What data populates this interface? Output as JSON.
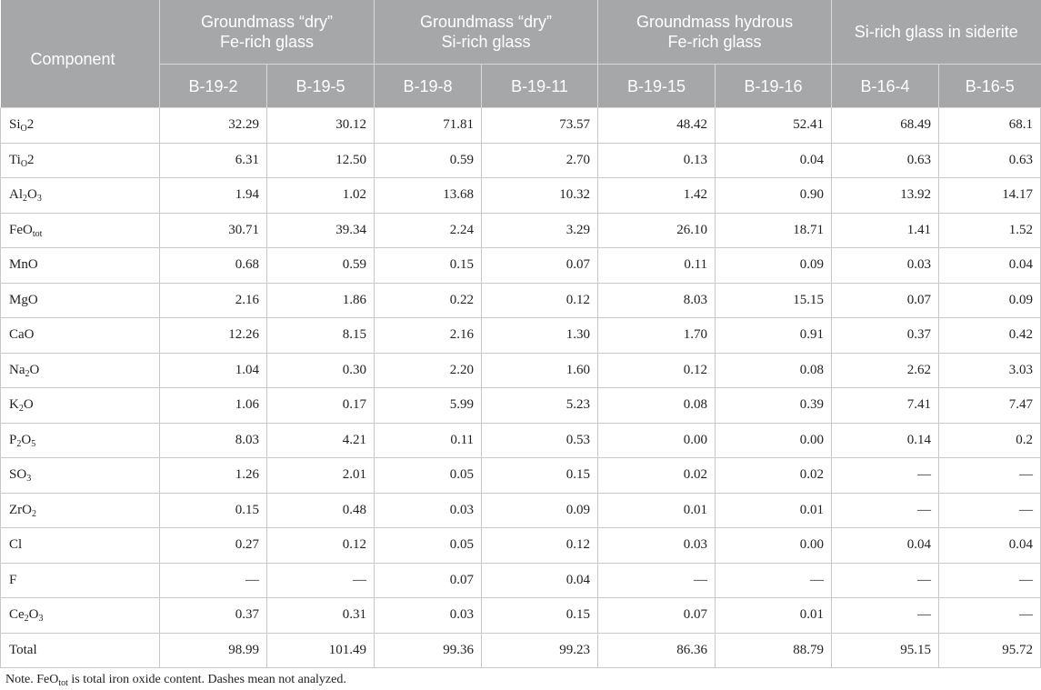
{
  "header": {
    "component": "Component",
    "groups": [
      {
        "line1": "Groundmass “dry”",
        "line2": "Fe-rich glass"
      },
      {
        "line1": "Groundmass “dry”",
        "line2": "Si-rich glass"
      },
      {
        "line1": "Groundmass hydrous",
        "line2": "Fe-rich glass"
      },
      {
        "line1": "Si-rich glass in siderite",
        "line2": ""
      }
    ],
    "samples": [
      "B-19-2",
      "B-19-5",
      "B-19-8",
      "B-19-11",
      "B-19-15",
      "B-19-16",
      "B-16-4",
      "B-16-5"
    ]
  },
  "rows": [
    {
      "label": [
        "Si",
        "O",
        "2",
        ""
      ],
      "values": [
        "32.29",
        "30.12",
        "71.81",
        "73.57",
        "48.42",
        "52.41",
        "68.49",
        "68.1"
      ]
    },
    {
      "label": [
        "Ti",
        "O",
        "2",
        ""
      ],
      "values": [
        "6.31",
        "12.50",
        "0.59",
        "2.70",
        "0.13",
        "0.04",
        "0.63",
        "0.63"
      ]
    },
    {
      "label": [
        "Al",
        "2",
        "O",
        "3"
      ],
      "values": [
        "1.94",
        "1.02",
        "13.68",
        "10.32",
        "1.42",
        "0.90",
        "13.92",
        "14.17"
      ]
    },
    {
      "label": [
        "FeO",
        "tot",
        "",
        ""
      ],
      "values": [
        "30.71",
        "39.34",
        "2.24",
        "3.29",
        "26.10",
        "18.71",
        "1.41",
        "1.52"
      ]
    },
    {
      "label": [
        "MnO",
        "",
        "",
        ""
      ],
      "values": [
        "0.68",
        "0.59",
        "0.15",
        "0.07",
        "0.11",
        "0.09",
        "0.03",
        "0.04"
      ]
    },
    {
      "label": [
        "MgO",
        "",
        "",
        ""
      ],
      "values": [
        "2.16",
        "1.86",
        "0.22",
        "0.12",
        "8.03",
        "15.15",
        "0.07",
        "0.09"
      ]
    },
    {
      "label": [
        "CaO",
        "",
        "",
        ""
      ],
      "values": [
        "12.26",
        "8.15",
        "2.16",
        "1.30",
        "1.70",
        "0.91",
        "0.37",
        "0.42"
      ]
    },
    {
      "label": [
        "Na",
        "2",
        "O",
        ""
      ],
      "values": [
        "1.04",
        "0.30",
        "2.20",
        "1.60",
        "0.12",
        "0.08",
        "2.62",
        "3.03"
      ]
    },
    {
      "label": [
        "K",
        "2",
        "O",
        ""
      ],
      "values": [
        "1.06",
        "0.17",
        "5.99",
        "5.23",
        "0.08",
        "0.39",
        "7.41",
        "7.47"
      ]
    },
    {
      "label": [
        "P",
        "2",
        "O",
        "5"
      ],
      "values": [
        "8.03",
        "4.21",
        "0.11",
        "0.53",
        "0.00",
        "0.00",
        "0.14",
        "0.2"
      ]
    },
    {
      "label": [
        "SO",
        "3",
        "",
        ""
      ],
      "values": [
        "1.26",
        "2.01",
        "0.05",
        "0.15",
        "0.02",
        "0.02",
        "—",
        "—"
      ]
    },
    {
      "label": [
        "ZrO",
        "2",
        "",
        ""
      ],
      "values": [
        "0.15",
        "0.48",
        "0.03",
        "0.09",
        "0.01",
        "0.01",
        "—",
        "—"
      ]
    },
    {
      "label": [
        "Cl",
        "",
        "",
        ""
      ],
      "values": [
        "0.27",
        "0.12",
        "0.05",
        "0.12",
        "0.03",
        "0.00",
        "0.04",
        "0.04"
      ]
    },
    {
      "label": [
        "F",
        "",
        "",
        ""
      ],
      "values": [
        "—",
        "—",
        "0.07",
        "0.04",
        "—",
        "—",
        "—",
        "—"
      ]
    },
    {
      "label": [
        "Ce",
        "2",
        "O",
        "3"
      ],
      "values": [
        "0.37",
        "0.31",
        "0.03",
        "0.15",
        "0.07",
        "0.01",
        "—",
        "—"
      ]
    },
    {
      "label": [
        "Total",
        "",
        "",
        ""
      ],
      "values": [
        "98.99",
        "101.49",
        "99.36",
        "99.23",
        "86.36",
        "88.79",
        "95.15",
        "95.72"
      ]
    }
  ],
  "note": {
    "before": "Note. FeO",
    "sub": "tot",
    "after": " is total iron oxide content. Dashes mean not analyzed."
  }
}
